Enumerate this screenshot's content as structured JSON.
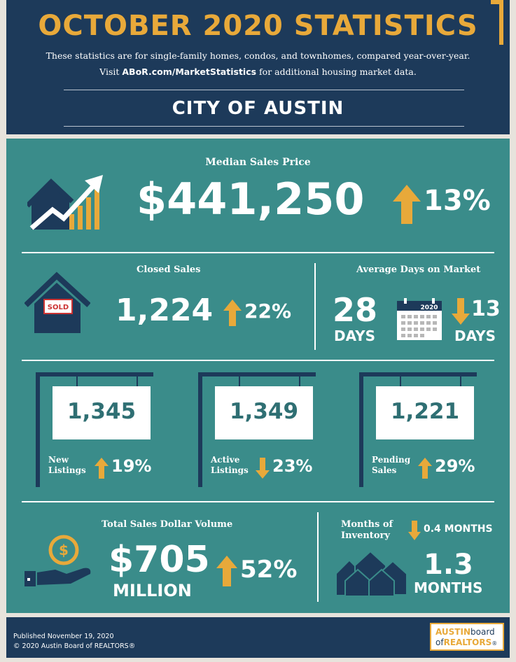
{
  "header": {
    "title": "OCTOBER 2020 STATISTICS",
    "subtitle_line1": "These statistics are for single-family homes, condos, and townhomes, compared year-over-year.",
    "subtitle_line2_pre": "Visit ",
    "subtitle_link": "ABoR.com/MarketStatistics",
    "subtitle_line2_post": " for additional housing market data.",
    "city": "CITY OF AUSTIN"
  },
  "median": {
    "label": "Median Sales Price",
    "value": "$441,250",
    "change": "13%",
    "direction": "up"
  },
  "closed": {
    "label": "Closed Sales",
    "value": "1,224",
    "change": "22%",
    "direction": "up",
    "sold_sign": "SOLD"
  },
  "days": {
    "label": "Average Days on Market",
    "value": "28",
    "unit": "DAYS",
    "calendar_year": "2020",
    "change": "13",
    "change_unit": "DAYS",
    "direction": "down"
  },
  "listings": [
    {
      "value": "1,345",
      "label_line1": "New",
      "label_line2": "Listings",
      "change": "19%",
      "direction": "up"
    },
    {
      "value": "1,349",
      "label_line1": "Active",
      "label_line2": "Listings",
      "change": "23%",
      "direction": "down"
    },
    {
      "value": "1,221",
      "label_line1": "Pending",
      "label_line2": "Sales",
      "change": "29%",
      "direction": "up"
    }
  ],
  "volume": {
    "label": "Total Sales Dollar Volume",
    "value": "$705",
    "unit": "MILLION",
    "change": "52%",
    "direction": "up"
  },
  "inventory": {
    "label_line1": "Months of",
    "label_line2": "Inventory",
    "change": "0.4 MONTHS",
    "direction": "down",
    "value": "1.3",
    "unit": "MONTHS"
  },
  "footer": {
    "published": "Published November 19, 2020",
    "copyright": "© 2020 Austin Board of REALTORS®",
    "logo_word1": "AUSTIN",
    "logo_word2": "board",
    "logo_word3": "of",
    "logo_word4": "REALTORS",
    "logo_mark": "®"
  },
  "colors": {
    "navy": "#1d3a5a",
    "teal": "#3a8c8a",
    "gold": "#e8a93a",
    "white": "#ffffff"
  }
}
